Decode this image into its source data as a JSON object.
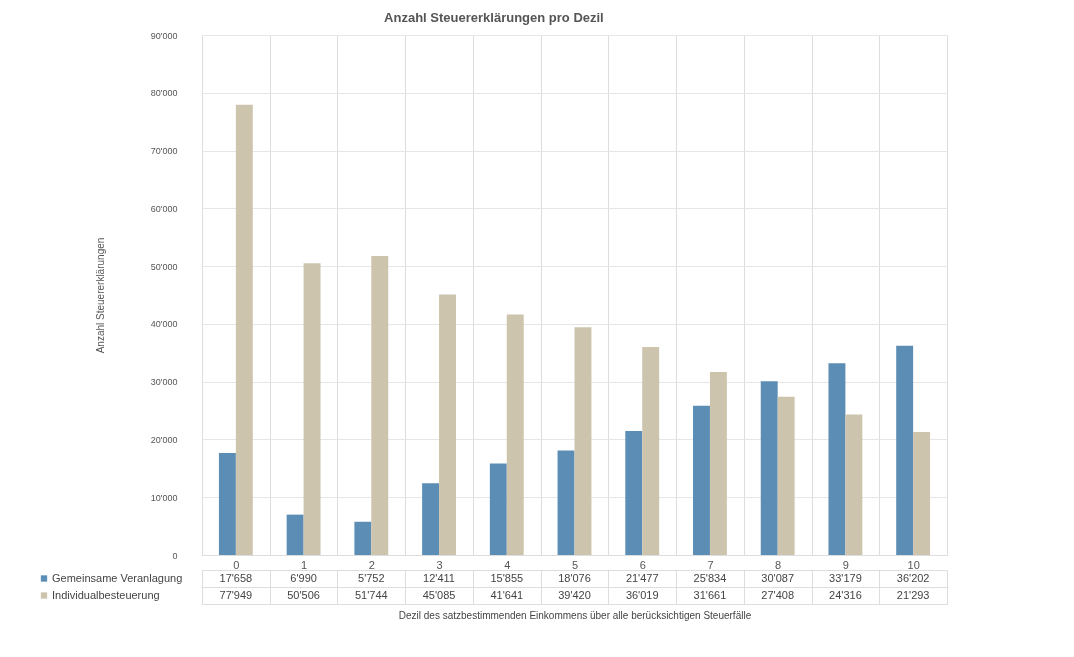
{
  "chart_data": {
    "type": "bar",
    "title": "Anzahl Steuererklärungen pro Dezil",
    "xlabel": "Dezil des satzbestimmenden Einkommens über alle berücksichtigen Steuerfälle",
    "ylabel": "Anzahl Steuererklärungen",
    "categories": [
      "0",
      "1",
      "2",
      "3",
      "4",
      "5",
      "6",
      "7",
      "8",
      "9",
      "10"
    ],
    "series": [
      {
        "name": "Gemeinsame Veranlagung",
        "color": "#5b8db5",
        "values": [
          17658,
          6990,
          5752,
          12411,
          15855,
          18076,
          21477,
          25834,
          30087,
          33179,
          36202
        ],
        "value_labels": [
          "17'658",
          "6'990",
          "5'752",
          "12'411",
          "15'855",
          "18'076",
          "21'477",
          "25'834",
          "30'087",
          "33'179",
          "36'202"
        ]
      },
      {
        "name": "Individualbesteuerung",
        "color": "#cdc4ad",
        "values": [
          77949,
          50506,
          51744,
          45085,
          41641,
          39420,
          36019,
          31661,
          27408,
          24316,
          21293
        ],
        "value_labels": [
          "77'949",
          "50'506",
          "51'744",
          "45'085",
          "41'641",
          "39'420",
          "36'019",
          "31'661",
          "27'408",
          "24'316",
          "21'293"
        ]
      }
    ],
    "ylim": [
      0,
      90000
    ],
    "yticks": [
      0,
      {
        "value": 10000,
        "label": "10'000"
      },
      {
        "value": 20000,
        "label": "20'000"
      },
      {
        "value": 30000,
        "label": "30'000"
      },
      {
        "value": 40000,
        "label": "40'000"
      },
      {
        "value": 50000,
        "label": "50'000"
      },
      {
        "value": 60000,
        "label": "60'000"
      },
      {
        "value": 70000,
        "label": "70'000"
      },
      {
        "value": 80000,
        "label": "80'000"
      },
      {
        "value": 90000,
        "label": "90'000"
      }
    ],
    "grid": "y",
    "legend": "bottom"
  }
}
